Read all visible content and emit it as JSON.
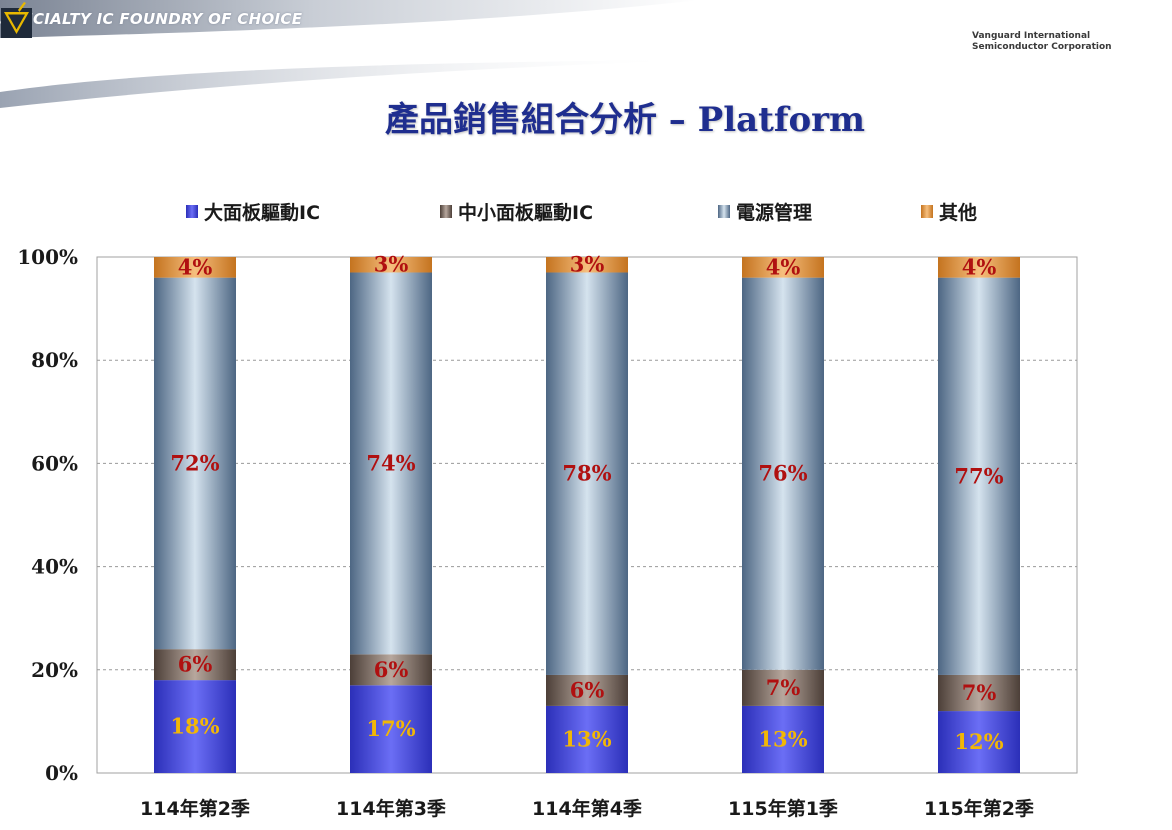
{
  "header": {
    "tagline": "SPECIALTY IC FOUNDRY OF CHOICE",
    "company_line1": "Vanguard International",
    "company_line2": "Semiconductor Corporation",
    "logo_icon": "vis-triangle-check-logo-icon"
  },
  "page_title": "產品銷售組合分析 – Platform",
  "colors": {
    "title": "#1f2e8f",
    "large_panel": "#3b3fe0",
    "small_panel": "#7a6a60",
    "power": "#a9bfd1",
    "other": "#e79a45",
    "label_red": "#b01010",
    "label_yellow": "#f2b705"
  },
  "chart_data": {
    "type": "bar",
    "stacked": true,
    "percent": true,
    "categories": [
      "114年第2季",
      "114年第3季",
      "114年第4季",
      "115年第1季",
      "115年第2季"
    ],
    "series": [
      {
        "name": "大面板驅動IC",
        "values": [
          18,
          17,
          13,
          13,
          12
        ],
        "labels": [
          "18%",
          "17%",
          "13%",
          "13%",
          "12%"
        ]
      },
      {
        "name": "中小面板驅動IC",
        "values": [
          6,
          6,
          6,
          7,
          7
        ],
        "labels": [
          "6%",
          "6%",
          "6%",
          "7%",
          "7%"
        ]
      },
      {
        "name": "電源管理",
        "values": [
          72,
          74,
          78,
          76,
          77
        ],
        "labels": [
          "72%",
          "74%",
          "78%",
          "76%",
          "77%"
        ]
      },
      {
        "name": "其他",
        "values": [
          4,
          3,
          3,
          4,
          4
        ],
        "labels": [
          "4%",
          "3%",
          "3%",
          "4%",
          "4%"
        ]
      }
    ],
    "ylim": [
      0,
      100
    ],
    "yticks": [
      0,
      20,
      40,
      60,
      80,
      100
    ],
    "ytick_labels": [
      "0%",
      "20%",
      "40%",
      "60%",
      "80%",
      "100%"
    ],
    "grid": true,
    "legend_position": "top"
  }
}
